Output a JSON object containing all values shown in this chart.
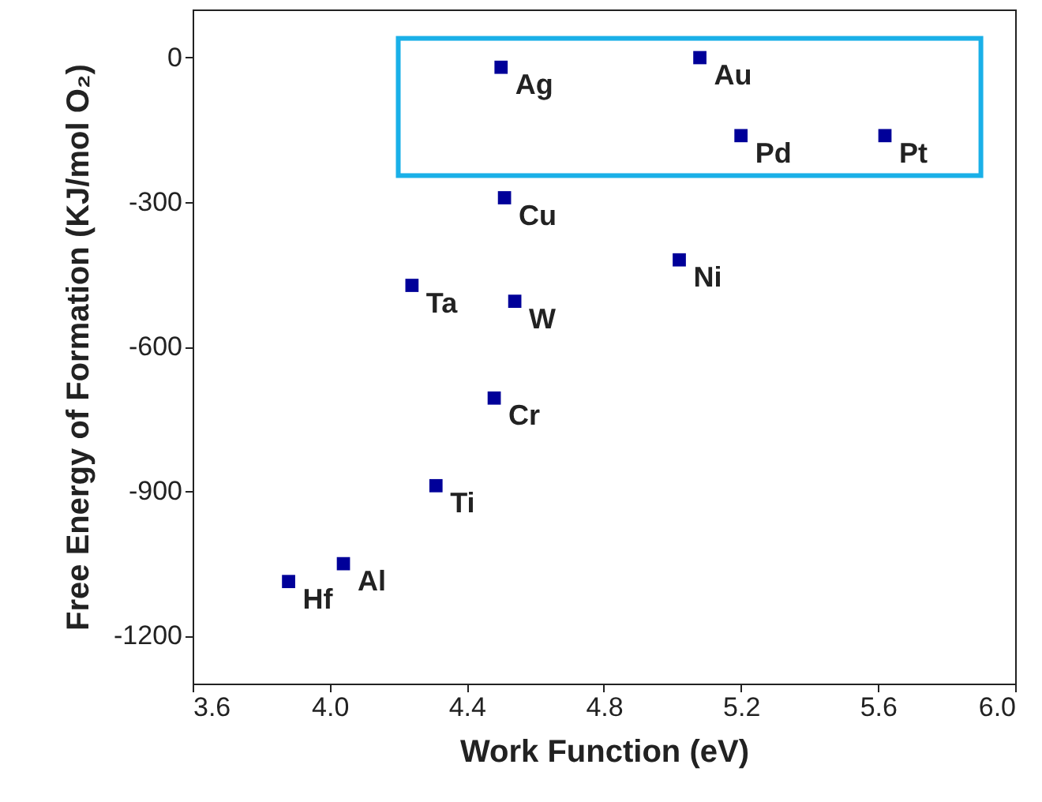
{
  "chart_data": {
    "type": "scatter",
    "xlabel": "Work Function (eV)",
    "ylabel": "Free Energy of Formation (KJ/mol O₂)",
    "x": [
      4.5,
      5.08,
      5.2,
      5.62,
      4.51,
      5.02,
      4.24,
      4.54,
      4.48,
      4.31,
      4.04,
      3.88
    ],
    "series": [
      {
        "color": "#000099",
        "values": [
          -20,
          0,
          -162,
          -162,
          -291,
          -420,
          -473,
          -506,
          -707,
          -889,
          -1051,
          -1088
        ]
      }
    ],
    "xlim": [
      3.6,
      6.0
    ],
    "xticks": [
      3.6,
      {
        "value": 4,
        "label": "4.0"
      },
      4.4,
      4.8,
      5.2,
      5.6,
      {
        "value": 6,
        "label": "6.0"
      }
    ],
    "ylim": [
      -1300,
      100
    ],
    "yticks": [
      {
        "value": -1200,
        "label": "-1200"
      },
      {
        "value": -900,
        "label": "-900"
      },
      {
        "value": -600,
        "label": "-600"
      },
      {
        "value": -300,
        "label": "-300"
      },
      0
    ],
    "marker": "square",
    "grid": false,
    "annotations": [
      {
        "text": "Ag",
        "x": 4.5,
        "y": -20
      },
      {
        "text": "Au",
        "x": 5.08,
        "y": 0
      },
      {
        "text": "Pd",
        "x": 5.2,
        "y": -162
      },
      {
        "text": "Pt",
        "x": 5.62,
        "y": -162
      },
      {
        "text": "Cu",
        "x": 4.51,
        "y": -291
      },
      {
        "text": "Ni",
        "x": 5.02,
        "y": -420
      },
      {
        "text": "Ta",
        "x": 4.24,
        "y": -473
      },
      {
        "text": "W",
        "x": 4.54,
        "y": -506
      },
      {
        "text": "Cr",
        "x": 4.48,
        "y": -707
      },
      {
        "text": "Ti",
        "x": 4.31,
        "y": -889
      },
      {
        "text": "Al",
        "x": 4.04,
        "y": -1051
      },
      {
        "text": "Hf",
        "x": 3.88,
        "y": -1088
      }
    ]
  }
}
